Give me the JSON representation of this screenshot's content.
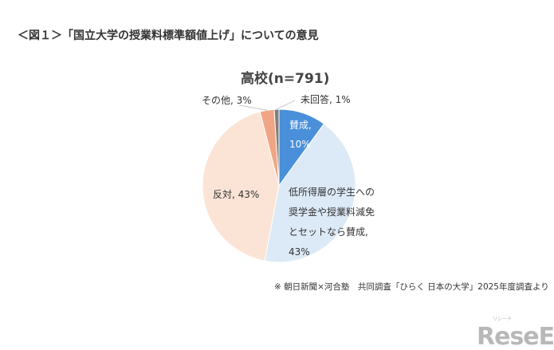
{
  "header": {
    "figure_title": "＜図１＞「国立大学の授業料標準額値上げ」についての意見"
  },
  "chart_data": {
    "type": "pie",
    "title": "高校(n=791)",
    "start": "top, clockwise",
    "slices": [
      {
        "label": "賛成",
        "value": 10,
        "display": [
          "賛成,",
          "10%"
        ],
        "color": "#4a8fd9"
      },
      {
        "label": "低所得層の学生への奨学金や授業料減免とセットなら賛成",
        "value": 43,
        "display": [
          "低所得層の学生への",
          "奨学金や授業料減免",
          "とセットなら賛成,",
          "43%"
        ],
        "color": "#dce9f6"
      },
      {
        "label": "反対",
        "value": 43,
        "display": [
          "反対, 43%"
        ],
        "color": "#fbe4d6"
      },
      {
        "label": "その他",
        "value": 3,
        "display": [
          "その他, 3%"
        ],
        "color": "#f0a684"
      },
      {
        "label": "未回答",
        "value": 1,
        "display": [
          "未回答, 1%"
        ],
        "color": "#7f7f7f"
      }
    ]
  },
  "footer": {
    "source": "※ 朝日新聞×河合塾　共同調査「ひらく 日本の大学」2025年度調査より"
  },
  "logo": {
    "text": "ReseEd",
    "sub": "リシード"
  }
}
